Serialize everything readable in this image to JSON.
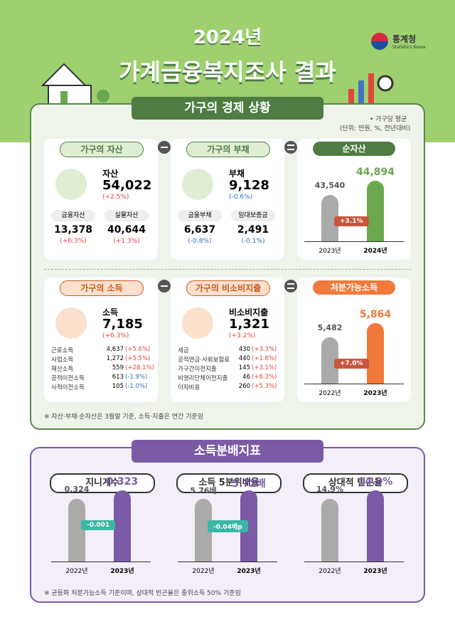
{
  "header": {
    "year_title": "2024년",
    "title": "가계금융복지조사 결과",
    "logo_name": "통계청",
    "logo_sub": "Statistics Korea"
  },
  "economic": {
    "title": "가구의 경제 상황",
    "unit_note": "• 가구당 평균",
    "unit": "(단위: 만원, %, 전년대비)",
    "assets": {
      "label": "가구의 자산",
      "name": "자산",
      "value": "54,022",
      "change": "(+2.5%)",
      "items": [
        {
          "name": "금융자산",
          "value": "13,378",
          "change": "(+6.3%)"
        },
        {
          "name": "실물자산",
          "value": "40,644",
          "change": "(+1.3%)"
        }
      ]
    },
    "debt": {
      "label": "가구의 부채",
      "name": "부채",
      "value": "9,128",
      "change": "(-0.6%)",
      "items": [
        {
          "name": "금융부채",
          "value": "6,637",
          "change": "(-0.8%)"
        },
        {
          "name": "임대보증금",
          "value": "2,491",
          "change": "(-0.1%)"
        }
      ]
    },
    "net_assets": {
      "label": "순자산",
      "values": [
        "43,540",
        "44,894"
      ],
      "years": [
        "2023년",
        "2024년"
      ],
      "change": "+3.1%"
    },
    "income": {
      "label": "가구의 소득",
      "name": "소득",
      "value": "7,185",
      "change": "(+6.3%)",
      "items": [
        {
          "name": "근로소득",
          "value": "4,637",
          "change": "(+5.6%)"
        },
        {
          "name": "사업소득",
          "value": "1,272",
          "change": "(+5.5%)"
        },
        {
          "name": "재산소득",
          "value": "559",
          "change": "(+28.1%)"
        },
        {
          "name": "공적이전소득",
          "value": "613",
          "change": "(-1.9%)"
        },
        {
          "name": "사적이전소득",
          "value": "105",
          "change": "(-1.0%)"
        }
      ]
    },
    "non_consumption": {
      "label": "가구의 비소비지출",
      "name": "비소비지출",
      "value": "1,321",
      "change": "(+3.2%)",
      "items": [
        {
          "name": "세금",
          "value": "430",
          "change": "(+3.3%)"
        },
        {
          "name": "공적연금·사회보험료",
          "value": "440",
          "change": "(+1.6%)"
        },
        {
          "name": "가구간이전지출",
          "value": "145",
          "change": "(+3.1%)"
        },
        {
          "name": "비영리단체이전지출",
          "value": "46",
          "change": "(+6.3%)"
        },
        {
          "name": "이자비용",
          "value": "260",
          "change": "(+5.3%)"
        }
      ]
    },
    "disposable": {
      "label": "처분가능소득",
      "values": [
        "5,482",
        "5,864"
      ],
      "years": [
        "2022년",
        "2023년"
      ],
      "change": "+7.0%"
    },
    "note": "※ 자산·부채·순자산은 3월말 기준, 소득·지출은 연간 기준임"
  },
  "distribution": {
    "title": "소득분배지표",
    "gini": {
      "label": "지니계수",
      "values": [
        "0.324",
        "0.323"
      ],
      "years": [
        "2022년",
        "2023년"
      ],
      "change": "-0.001"
    },
    "quintile": {
      "label": "소득 5분위배율",
      "values": [
        "5.76배",
        "5.72배"
      ],
      "years": [
        "2022년",
        "2023년"
      ],
      "change": "-0.04배p"
    },
    "poverty": {
      "label": "상대적 빈곤율",
      "values": [
        "14.9%",
        "14.9%"
      ],
      "years": [
        "2022년",
        "2023년"
      ]
    },
    "note": "※ 균등화 처분가능소득 기준이며, 상대적 빈곤율은 중위소득 50% 기준임"
  }
}
